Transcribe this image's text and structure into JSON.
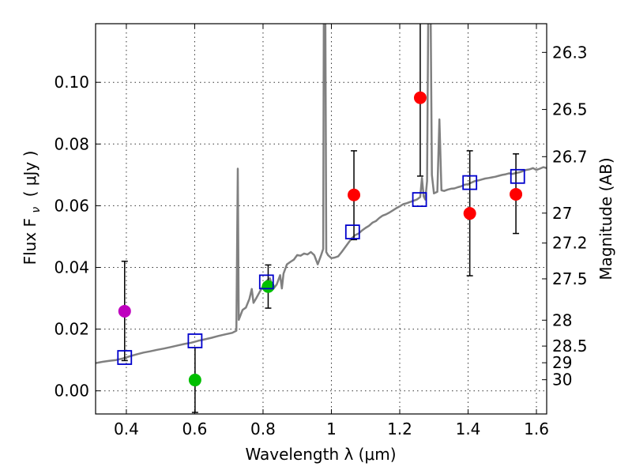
{
  "chart_data": {
    "type": "scatter",
    "xlabel": "Wavelength  λ (μm)",
    "ylabel_text": "Flux  F",
    "ylabel_subscript": "ν",
    "ylabel_units": "( μJy )",
    "y2label": "Magnitude (AB)",
    "xlim": [
      0.31,
      1.63
    ],
    "ylim": [
      -0.0075,
      0.119
    ],
    "xticks": [
      0.4,
      0.6,
      0.8,
      1.0,
      1.2,
      1.4,
      1.6
    ],
    "xtick_labels": [
      "0.4",
      "0.6",
      "0.8",
      "1",
      "1.2",
      "1.4",
      "1.6"
    ],
    "yticks": [
      0.0,
      0.02,
      0.04,
      0.06,
      0.08,
      0.1
    ],
    "ytick_labels": [
      "0.00",
      "0.02",
      "0.04",
      "0.06",
      "0.08",
      "0.10"
    ],
    "y2ticks": [
      {
        "label": "26.3",
        "flux": 0.1097
      },
      {
        "label": "26.5",
        "flux": 0.0912
      },
      {
        "label": "26.7",
        "flux": 0.0759
      },
      {
        "label": "27",
        "flux": 0.0576
      },
      {
        "label": "27.2",
        "flux": 0.0479
      },
      {
        "label": "27.5",
        "flux": 0.0363
      },
      {
        "label": "28",
        "flux": 0.0229
      },
      {
        "label": "28.5",
        "flux": 0.0145
      },
      {
        "label": "29",
        "flux": 0.0091
      },
      {
        "label": "30",
        "flux": 0.0036
      }
    ],
    "grid": true,
    "points": [
      {
        "x": 0.395,
        "y": 0.0258,
        "yerr_low": 0.0098,
        "yerr_high": 0.042,
        "color": "#bf00bf"
      },
      {
        "x": 0.601,
        "y": 0.0035,
        "yerr_low": -0.007,
        "yerr_high": 0.014,
        "color": "#00bf00"
      },
      {
        "x": 0.815,
        "y": 0.0338,
        "yerr_low": 0.0268,
        "yerr_high": 0.0408,
        "color": "#00bf00"
      },
      {
        "x": 1.066,
        "y": 0.0635,
        "yerr_low": 0.049,
        "yerr_high": 0.0778,
        "color": "#ff0000"
      },
      {
        "x": 1.26,
        "y": 0.095,
        "yerr_low": 0.0696,
        "yerr_high": 0.12,
        "color": "#ff0000"
      },
      {
        "x": 1.405,
        "y": 0.0575,
        "yerr_low": 0.0373,
        "yerr_high": 0.0778,
        "color": "#ff0000"
      },
      {
        "x": 1.54,
        "y": 0.0637,
        "yerr_low": 0.051,
        "yerr_high": 0.0768,
        "color": "#ff0000"
      }
    ],
    "model_squares": [
      {
        "x": 0.395,
        "y": 0.0108
      },
      {
        "x": 0.601,
        "y": 0.0162
      },
      {
        "x": 0.81,
        "y": 0.0353
      },
      {
        "x": 1.062,
        "y": 0.0515
      },
      {
        "x": 1.258,
        "y": 0.062
      },
      {
        "x": 1.405,
        "y": 0.0675
      },
      {
        "x": 1.545,
        "y": 0.0695
      }
    ],
    "template_spectrum": [
      [
        0.31,
        0.009
      ],
      [
        0.33,
        0.0094
      ],
      [
        0.35,
        0.0097
      ],
      [
        0.37,
        0.01
      ],
      [
        0.39,
        0.0105
      ],
      [
        0.41,
        0.0112
      ],
      [
        0.43,
        0.0118
      ],
      [
        0.45,
        0.0124
      ],
      [
        0.47,
        0.0128
      ],
      [
        0.49,
        0.0133
      ],
      [
        0.51,
        0.0137
      ],
      [
        0.53,
        0.0142
      ],
      [
        0.55,
        0.0147
      ],
      [
        0.57,
        0.0152
      ],
      [
        0.59,
        0.0156
      ],
      [
        0.61,
        0.0162
      ],
      [
        0.63,
        0.0167
      ],
      [
        0.65,
        0.0172
      ],
      [
        0.67,
        0.0178
      ],
      [
        0.69,
        0.0183
      ],
      [
        0.71,
        0.0188
      ],
      [
        0.722,
        0.0195
      ],
      [
        0.726,
        0.072
      ],
      [
        0.729,
        0.023
      ],
      [
        0.74,
        0.0262
      ],
      [
        0.75,
        0.027
      ],
      [
        0.76,
        0.0298
      ],
      [
        0.767,
        0.033
      ],
      [
        0.772,
        0.0285
      ],
      [
        0.78,
        0.03
      ],
      [
        0.79,
        0.032
      ],
      [
        0.8,
        0.034
      ],
      [
        0.81,
        0.0356
      ],
      [
        0.82,
        0.0365
      ],
      [
        0.83,
        0.033
      ],
      [
        0.84,
        0.0345
      ],
      [
        0.85,
        0.0375
      ],
      [
        0.855,
        0.0332
      ],
      [
        0.86,
        0.038
      ],
      [
        0.87,
        0.041
      ],
      [
        0.88,
        0.0418
      ],
      [
        0.89,
        0.0425
      ],
      [
        0.9,
        0.044
      ],
      [
        0.91,
        0.0438
      ],
      [
        0.92,
        0.0445
      ],
      [
        0.93,
        0.0442
      ],
      [
        0.94,
        0.045
      ],
      [
        0.95,
        0.044
      ],
      [
        0.96,
        0.041
      ],
      [
        0.97,
        0.044
      ],
      [
        0.976,
        0.046
      ],
      [
        0.978,
        0.13
      ],
      [
        0.982,
        0.13
      ],
      [
        0.985,
        0.045
      ],
      [
        0.99,
        0.044
      ],
      [
        1.0,
        0.043
      ],
      [
        1.01,
        0.0432
      ],
      [
        1.02,
        0.0436
      ],
      [
        1.03,
        0.045
      ],
      [
        1.04,
        0.0465
      ],
      [
        1.05,
        0.048
      ],
      [
        1.06,
        0.0495
      ],
      [
        1.07,
        0.0505
      ],
      [
        1.08,
        0.051
      ],
      [
        1.09,
        0.052
      ],
      [
        1.1,
        0.0528
      ],
      [
        1.11,
        0.0535
      ],
      [
        1.12,
        0.0545
      ],
      [
        1.13,
        0.055
      ],
      [
        1.14,
        0.056
      ],
      [
        1.15,
        0.0568
      ],
      [
        1.16,
        0.0572
      ],
      [
        1.17,
        0.0578
      ],
      [
        1.18,
        0.0585
      ],
      [
        1.19,
        0.0592
      ],
      [
        1.2,
        0.0598
      ],
      [
        1.21,
        0.0605
      ],
      [
        1.22,
        0.0608
      ],
      [
        1.23,
        0.0612
      ],
      [
        1.24,
        0.0616
      ],
      [
        1.25,
        0.062
      ],
      [
        1.26,
        0.0628
      ],
      [
        1.265,
        0.069
      ],
      [
        1.27,
        0.063
      ],
      [
        1.275,
        0.062
      ],
      [
        1.28,
        0.068
      ],
      [
        1.284,
        0.13
      ],
      [
        1.29,
        0.13
      ],
      [
        1.294,
        0.07
      ],
      [
        1.3,
        0.064
      ],
      [
        1.31,
        0.0645
      ],
      [
        1.316,
        0.088
      ],
      [
        1.322,
        0.065
      ],
      [
        1.33,
        0.0648
      ],
      [
        1.34,
        0.0652
      ],
      [
        1.35,
        0.0655
      ],
      [
        1.36,
        0.0656
      ],
      [
        1.37,
        0.066
      ],
      [
        1.38,
        0.0663
      ],
      [
        1.39,
        0.0668
      ],
      [
        1.4,
        0.067
      ],
      [
        1.41,
        0.0675
      ],
      [
        1.42,
        0.068
      ],
      [
        1.43,
        0.0682
      ],
      [
        1.44,
        0.0685
      ],
      [
        1.45,
        0.0688
      ],
      [
        1.46,
        0.069
      ],
      [
        1.47,
        0.0692
      ],
      [
        1.48,
        0.0694
      ],
      [
        1.49,
        0.0697
      ],
      [
        1.5,
        0.07
      ],
      [
        1.51,
        0.0702
      ],
      [
        1.52,
        0.0705
      ],
      [
        1.53,
        0.0703
      ],
      [
        1.54,
        0.0706
      ],
      [
        1.55,
        0.0708
      ],
      [
        1.56,
        0.0712
      ],
      [
        1.57,
        0.0716
      ],
      [
        1.58,
        0.0718
      ],
      [
        1.59,
        0.0722
      ],
      [
        1.6,
        0.0716
      ],
      [
        1.61,
        0.072
      ],
      [
        1.62,
        0.0725
      ],
      [
        1.63,
        0.0722
      ]
    ],
    "colors": {
      "spectrum": "#808080",
      "squares": "#0000cc",
      "errorbar": "#000000"
    }
  }
}
